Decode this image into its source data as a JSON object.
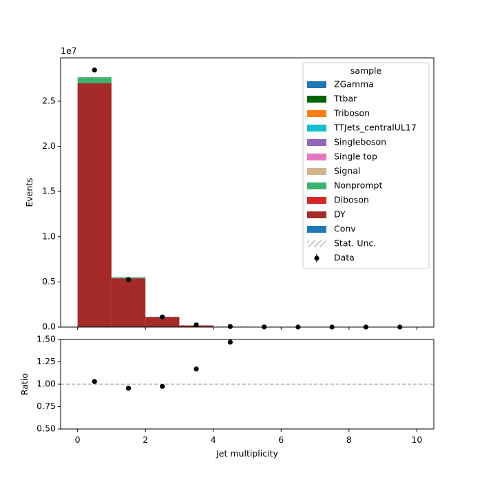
{
  "chart_data": [
    {
      "type": "bar",
      "stacked": true,
      "x_edges": [
        0,
        1,
        2,
        3,
        4,
        5,
        6,
        7,
        8,
        9,
        10
      ],
      "ylabel": "Events",
      "y_offset_text": "1e7",
      "ylim": [
        0,
        29800000
      ],
      "yticks": [
        0,
        5000000,
        10000000,
        15000000,
        20000000,
        25000000
      ],
      "ytick_labels": [
        "0.0",
        "0.5",
        "1.0",
        "1.5",
        "2.0",
        "2.5"
      ],
      "xlim": [
        -0.5,
        10.5
      ],
      "series": [
        {
          "name": "DY",
          "color": "#a52a2a",
          "values": [
            27000000,
            5400000,
            1120000,
            180000,
            30000,
            5000,
            0,
            0,
            0,
            0
          ]
        },
        {
          "name": "Nonprompt",
          "color": "#3cb371",
          "values": [
            650000,
            110000,
            20000,
            5000,
            1000,
            0,
            0,
            0,
            0,
            0
          ]
        }
      ],
      "data_points": {
        "name": "Data",
        "x": [
          0.5,
          1.5,
          2.5,
          3.5,
          4.5,
          5.5,
          6.5,
          7.5,
          8.5,
          9.5
        ],
        "y": [
          28450000,
          5250000,
          1120000,
          240000,
          60000,
          15000,
          3000,
          1000,
          500,
          200
        ]
      },
      "legend": {
        "title": "sample",
        "placement": "upper right",
        "entries": [
          {
            "label": "ZGamma",
            "color": "#1f77b4"
          },
          {
            "label": "Ttbar",
            "color": "#006400"
          },
          {
            "label": "Triboson",
            "color": "#ff7f0e"
          },
          {
            "label": "TTJets_centralUL17",
            "color": "#17becf"
          },
          {
            "label": "Singleboson",
            "color": "#9467bd"
          },
          {
            "label": "Single top",
            "color": "#e377c2"
          },
          {
            "label": "Signal",
            "color": "#d2b48c"
          },
          {
            "label": "Nonprompt",
            "color": "#3cb371"
          },
          {
            "label": "Diboson",
            "color": "#d62728"
          },
          {
            "label": "DY",
            "color": "#a52a2a"
          },
          {
            "label": "Conv",
            "color": "#1f77b4"
          },
          {
            "label": "Stat. Unc.",
            "style": "hatch"
          },
          {
            "label": "Data",
            "style": "marker"
          }
        ]
      }
    },
    {
      "type": "scatter",
      "xlabel": "Jet multiplicity",
      "ylabel": "Ratio",
      "xlim": [
        -0.5,
        10.5
      ],
      "ylim": [
        0.5,
        1.5
      ],
      "xticks": [
        0,
        2,
        4,
        6,
        8,
        10
      ],
      "yticks": [
        0.5,
        0.75,
        1.0,
        1.25,
        1.5
      ],
      "ytick_labels": [
        "0.50",
        "0.75",
        "1.00",
        "1.25",
        "1.50"
      ],
      "reference_line": 1.0,
      "points": {
        "x": [
          0.5,
          1.5,
          2.5,
          3.5,
          4.5
        ],
        "y": [
          1.03,
          0.955,
          0.975,
          1.17,
          1.47
        ]
      }
    }
  ]
}
